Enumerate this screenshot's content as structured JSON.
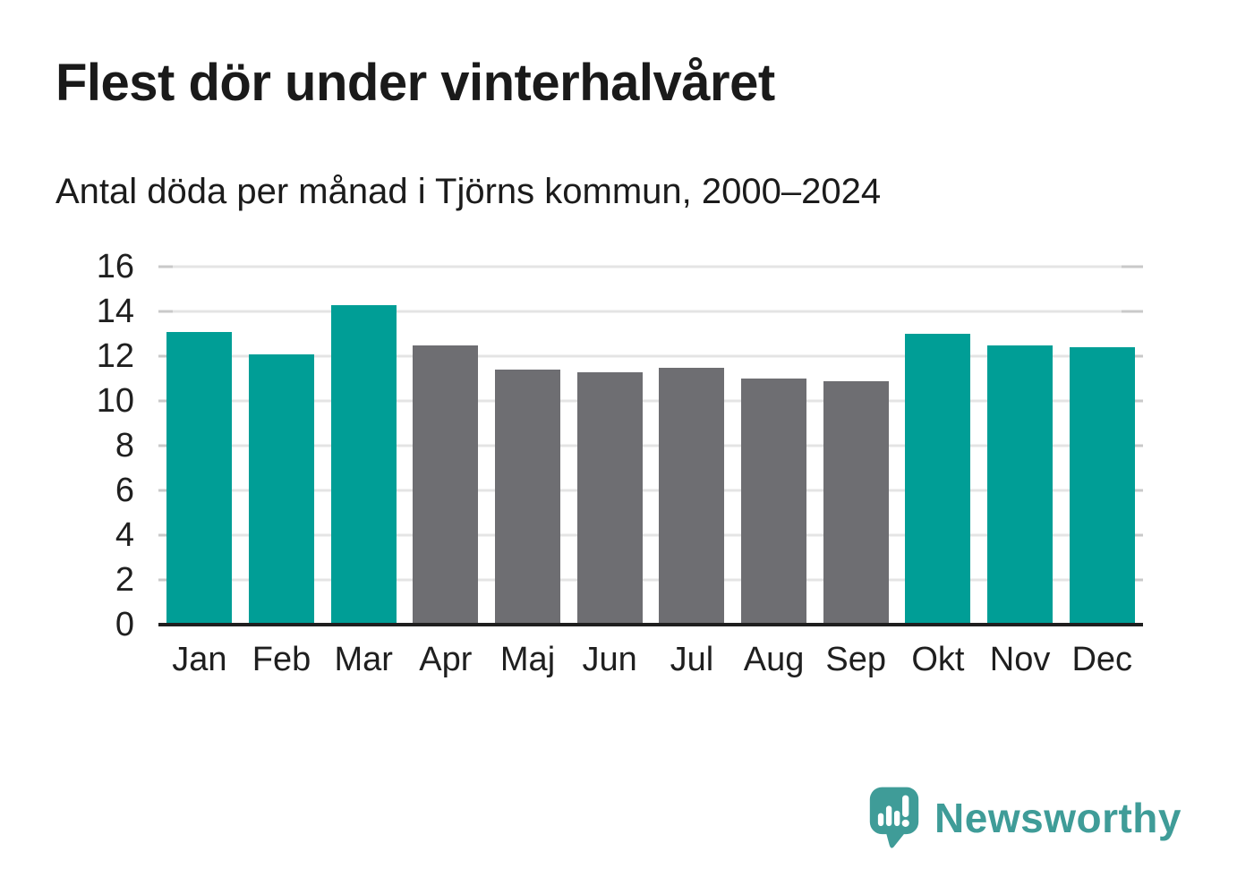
{
  "header": {
    "title": "Flest dör under vinterhalvåret",
    "subtitle": "Antal döda per månad i Tjörns kommun, 2000–2024"
  },
  "chart_data": {
    "type": "bar",
    "title": "Flest dör under vinterhalvåret",
    "subtitle": "Antal döda per månad i Tjörns kommun, 2000–2024",
    "categories": [
      "Jan",
      "Feb",
      "Mar",
      "Apr",
      "Maj",
      "Jun",
      "Jul",
      "Aug",
      "Sep",
      "Okt",
      "Nov",
      "Dec"
    ],
    "values": [
      13.1,
      12.1,
      14.3,
      12.5,
      11.4,
      11.3,
      11.5,
      11.0,
      10.9,
      13.0,
      12.5,
      12.4
    ],
    "bar_colors": [
      "#009E96",
      "#009E96",
      "#009E96",
      "#6E6E72",
      "#6E6E72",
      "#6E6E72",
      "#6E6E72",
      "#6E6E72",
      "#6E6E72",
      "#009E96",
      "#009E96",
      "#009E96"
    ],
    "highlight_meaning": "winter months highlighted in teal, summer months gray",
    "xlabel": "",
    "ylabel": "",
    "ylim": [
      0,
      16
    ],
    "yticks": [
      0,
      2,
      4,
      6,
      8,
      10,
      12,
      14,
      16
    ],
    "grid": "horizontal",
    "legend": "none"
  },
  "colors": {
    "winter_bar": "#009E96",
    "summer_bar": "#6E6E72",
    "axis_line": "#1f1f1f",
    "gridline": "#e4e4e4",
    "tick_stub": "#c9c9c9",
    "text": "#1a1a1a",
    "brand_teal": "#3F9C98"
  },
  "footer": {
    "brand": "Newsworthy"
  }
}
